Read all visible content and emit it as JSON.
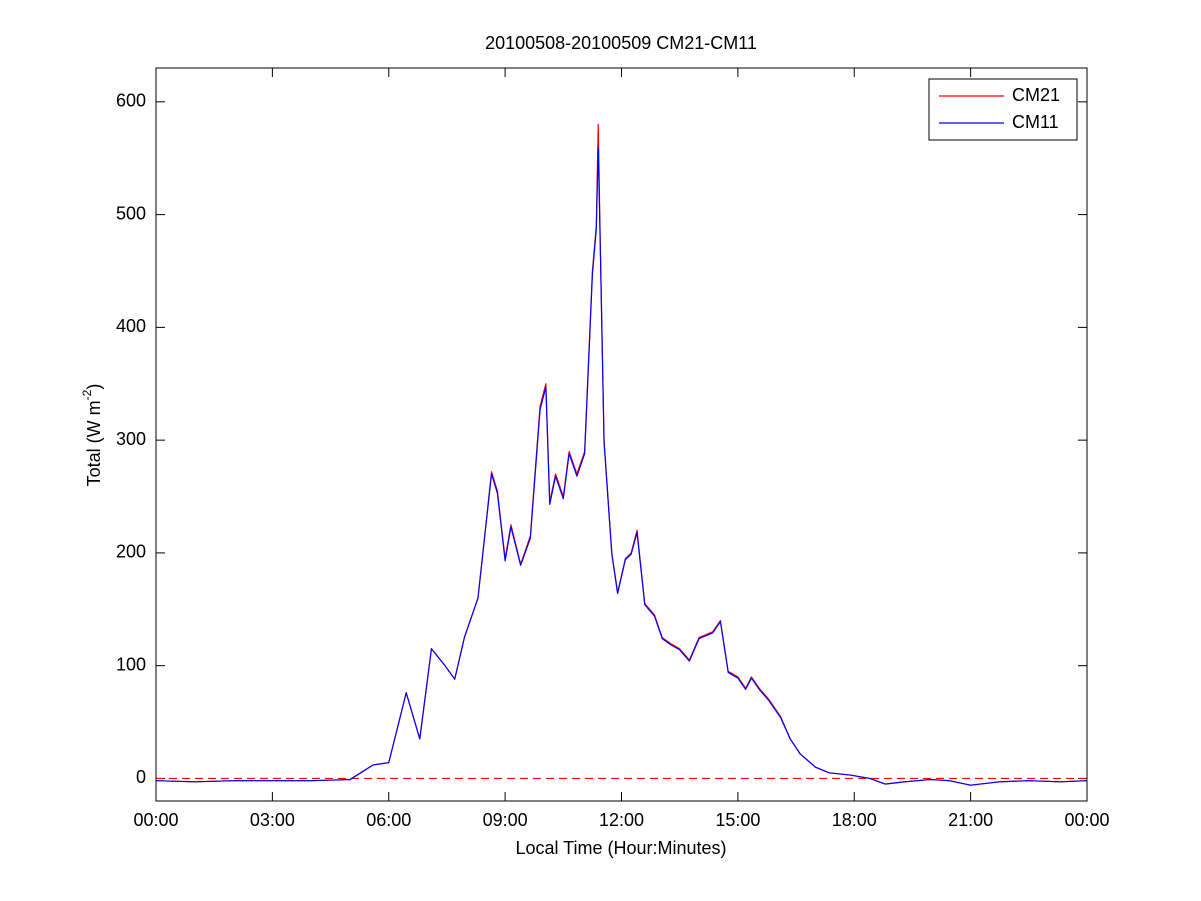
{
  "chart_data": {
    "type": "line",
    "title": "20100508-20100509 CM21-CM11",
    "xlabel": "Local Time (Hour:Minutes)",
    "ylabel": {
      "text": "Total (W m",
      "sup": "-2",
      "after": ")"
    },
    "x": [
      0,
      1,
      2,
      3,
      4,
      5,
      5.6,
      6.0,
      6.45,
      6.8,
      7.1,
      7.45,
      7.7,
      7.95,
      8.3,
      8.65,
      8.8,
      9.0,
      9.15,
      9.4,
      9.65,
      9.9,
      10.05,
      10.15,
      10.3,
      10.5,
      10.65,
      10.85,
      11.05,
      11.25,
      11.35,
      11.4,
      11.45,
      11.55,
      11.75,
      11.9,
      12.1,
      12.25,
      12.4,
      12.6,
      12.85,
      13.05,
      13.25,
      13.5,
      13.75,
      14.0,
      14.35,
      14.55,
      14.75,
      15.0,
      15.2,
      15.35,
      15.55,
      15.8,
      16.1,
      16.35,
      16.6,
      17.0,
      17.35,
      17.9,
      18.4,
      18.8,
      19.3,
      19.95,
      20.45,
      21.0,
      21.75,
      22.5,
      23.3,
      24.0
    ],
    "series": [
      {
        "name": "CM21",
        "color": "#ff0000",
        "values": [
          -2,
          -3,
          -2,
          -2,
          -2,
          -1,
          12,
          14,
          76,
          35,
          115,
          100,
          88,
          125,
          160,
          272,
          255,
          195,
          225,
          190,
          215,
          330,
          350,
          245,
          270,
          250,
          290,
          270,
          290,
          450,
          490,
          580,
          480,
          300,
          200,
          165,
          195,
          200,
          220,
          155,
          145,
          125,
          120,
          115,
          105,
          125,
          130,
          140,
          95,
          90,
          80,
          90,
          80,
          70,
          55,
          35,
          22,
          10,
          5,
          3,
          0,
          -5,
          -3,
          -1,
          -2,
          -6,
          -3,
          -2,
          -3,
          -2
        ]
      },
      {
        "name": "CM11",
        "color": "#0000ff",
        "values": [
          -2,
          -3,
          -2,
          -2,
          -2,
          -1,
          12,
          14,
          76,
          35,
          115,
          100,
          88,
          125,
          160,
          270,
          253,
          193,
          223,
          189,
          213,
          327,
          347,
          243,
          268,
          248,
          288,
          268,
          288,
          447,
          487,
          560,
          477,
          298,
          199,
          164,
          194,
          199,
          218,
          154,
          144,
          124,
          119,
          114,
          104,
          124,
          129,
          139,
          94,
          89,
          79,
          89,
          79,
          69,
          54,
          35,
          22,
          10,
          5,
          3,
          0,
          -5,
          -3,
          -1,
          -2,
          -6,
          -3,
          -2,
          -3,
          -2
        ]
      }
    ],
    "xlim": [
      0,
      24
    ],
    "xticks": [
      {
        "value": 0,
        "label": "00:00"
      },
      {
        "value": 3,
        "label": "03:00"
      },
      {
        "value": 6,
        "label": "06:00"
      },
      {
        "value": 9,
        "label": "09:00"
      },
      {
        "value": 12,
        "label": "12:00"
      },
      {
        "value": 15,
        "label": "15:00"
      },
      {
        "value": 18,
        "label": "18:00"
      },
      {
        "value": 21,
        "label": "21:00"
      },
      {
        "value": 24,
        "label": "00:00"
      }
    ],
    "ylim": [
      -20,
      630
    ],
    "yticks": [
      0,
      100,
      200,
      300,
      400,
      500,
      600
    ],
    "hline": {
      "value": 0,
      "color": "#ff0000",
      "style": "dashed"
    },
    "legend": "northeast",
    "grid": false
  }
}
